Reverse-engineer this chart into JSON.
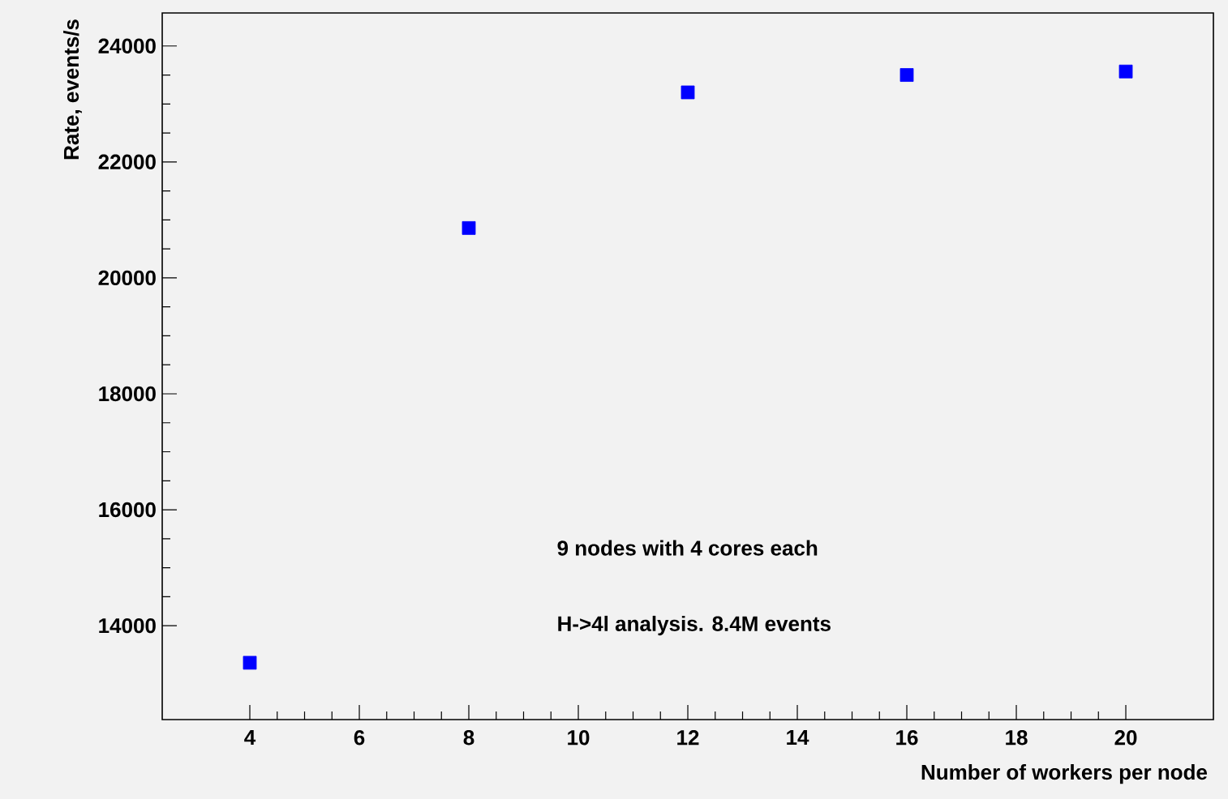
{
  "chart_data": {
    "type": "scatter",
    "xlabel": "Number of workers per node",
    "ylabel": "Rate, events/s",
    "x": [
      4,
      8,
      12,
      16,
      20
    ],
    "series": [
      {
        "color": "#0000ff",
        "values": [
          13360,
          20860,
          23200,
          23500,
          23560
        ]
      }
    ],
    "xlim": [
      2.4,
      21.6
    ],
    "ylim": [
      12380,
      24570
    ],
    "xticks": [
      4,
      6,
      8,
      10,
      12,
      14,
      16,
      18,
      20
    ],
    "yticks": [
      14000,
      16000,
      18000,
      20000,
      22000,
      24000
    ],
    "marker": "square",
    "grid": false,
    "annotations": [
      "9 nodes with 4 cores each",
      "H->4l analysis. 8.4M events"
    ]
  }
}
